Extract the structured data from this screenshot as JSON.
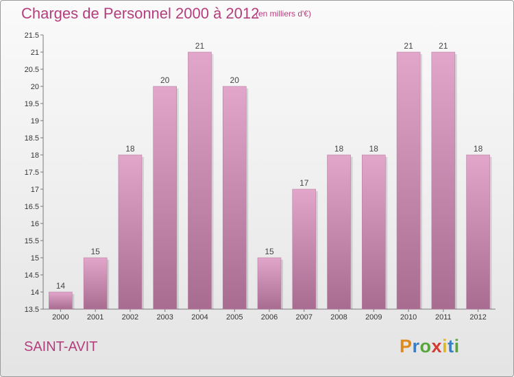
{
  "header": {
    "title": "Charges de Personnel 2000 à 2012",
    "subtitle": "(en milliers d'€)"
  },
  "footer": {
    "commune": "SAINT-AVIT",
    "logo_text": "Proxiti",
    "logo_letters": [
      {
        "ch": "P",
        "color": "#e08a1e"
      },
      {
        "ch": "r",
        "color": "#3a7fc4"
      },
      {
        "ch": "o",
        "color": "#58a63b"
      },
      {
        "ch": "x",
        "color": "#d43a2f"
      },
      {
        "ch": "i",
        "color": "#e0b81e"
      },
      {
        "ch": "t",
        "color": "#3a7fc4"
      },
      {
        "ch": "i",
        "color": "#58a63b"
      }
    ]
  },
  "colors": {
    "accent": "#b43d7c",
    "bar_top": "#e2a6cb",
    "bar_bottom": "#a86c91"
  },
  "chart_data": {
    "type": "bar",
    "categories": [
      "2000",
      "2001",
      "2002",
      "2003",
      "2004",
      "2005",
      "2006",
      "2007",
      "2008",
      "2009",
      "2010",
      "2011",
      "2012"
    ],
    "values": [
      14,
      15,
      18,
      20,
      21,
      20,
      15,
      17,
      18,
      18,
      21,
      21,
      18
    ],
    "data_labels": [
      "14",
      "15",
      "18",
      "20",
      "21",
      "20",
      "15",
      "17",
      "18",
      "18",
      "21",
      "21",
      "18"
    ],
    "ylim": [
      13.5,
      21.5
    ],
    "yticks": [
      13.5,
      14,
      14.5,
      15,
      15.5,
      16,
      16.5,
      17,
      17.5,
      18,
      18.5,
      19,
      19.5,
      20,
      20.5,
      21,
      21.5
    ],
    "ytick_labels": [
      "13.5",
      "14",
      "14.5",
      "15",
      "15.5",
      "16",
      "16.5",
      "17",
      "17.5",
      "18",
      "18.5",
      "19",
      "19.5",
      "20",
      "20.5",
      "21",
      "21.5"
    ],
    "title": "Charges de Personnel 2000 à 2012",
    "xlabel": "",
    "ylabel": "",
    "grid": false,
    "legend": "none"
  }
}
